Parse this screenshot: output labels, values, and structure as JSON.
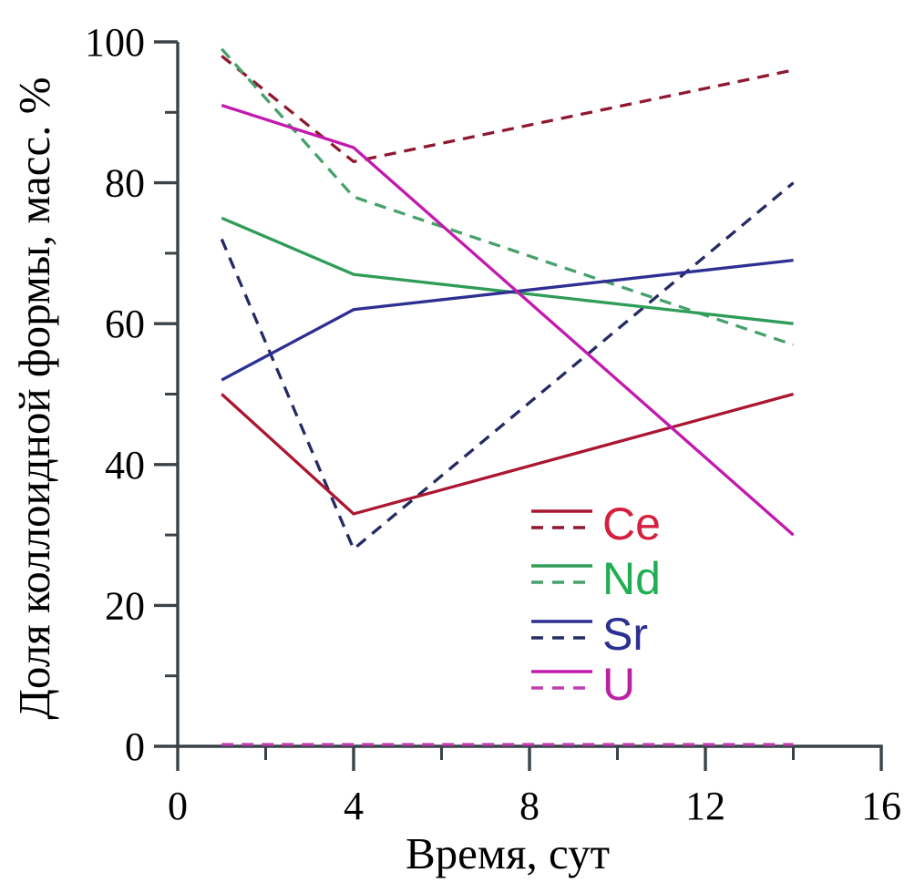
{
  "chart_data": {
    "type": "line",
    "title": "",
    "xlabel": "Время, сут",
    "ylabel": "Доля коллоидной формы, масс. %",
    "xlim": [
      0,
      16
    ],
    "ylim": [
      0,
      100
    ],
    "x_major_ticks": [
      0,
      4,
      8,
      12,
      16
    ],
    "x_minor_ticks": [
      2,
      6,
      10,
      14
    ],
    "y_major_ticks": [
      0,
      20,
      40,
      60,
      80,
      100
    ],
    "y_minor_ticks": [
      10,
      30,
      50,
      70,
      90
    ],
    "grid": false,
    "axis_color": "#3a4247",
    "legend_position": "inside, lower right of center",
    "x": [
      1,
      4,
      14
    ],
    "series": [
      {
        "element": "Ce",
        "style": "solid",
        "color": "#ab1632",
        "values": [
          50,
          33,
          50
        ]
      },
      {
        "element": "Ce",
        "style": "dashed",
        "color": "#8f1830",
        "values": [
          98,
          83,
          96
        ]
      },
      {
        "element": "Nd",
        "style": "solid",
        "color": "#2f9c58",
        "values": [
          75,
          67,
          60
        ]
      },
      {
        "element": "Nd",
        "style": "dashed",
        "color": "#46a16b",
        "values": [
          99,
          78,
          57
        ]
      },
      {
        "element": "Sr",
        "style": "solid",
        "color": "#2d2f92",
        "values": [
          52,
          62,
          69
        ]
      },
      {
        "element": "Sr",
        "style": "dashed",
        "color": "#252a63",
        "values": [
          72,
          28,
          80
        ]
      },
      {
        "element": "U",
        "style": "solid",
        "color": "#c219ae",
        "values": [
          91,
          85,
          30
        ]
      },
      {
        "element": "U",
        "style": "dashed",
        "color": "#c03cb0",
        "values": [
          0,
          0,
          0
        ]
      }
    ],
    "legend": [
      {
        "label": "Ce",
        "solid_color": "#ab1632",
        "dashed_color": "#8f1830",
        "text_color": "#d4203f"
      },
      {
        "label": "Nd",
        "solid_color": "#2f9c58",
        "dashed_color": "#46a16b",
        "text_color": "#1fae52"
      },
      {
        "label": "Sr",
        "solid_color": "#2d2f92",
        "dashed_color": "#252a63",
        "text_color": "#2b2f90"
      },
      {
        "label": "U",
        "solid_color": "#c219ae",
        "dashed_color": "#c03cb0",
        "text_color": "#bb22a3"
      }
    ]
  }
}
